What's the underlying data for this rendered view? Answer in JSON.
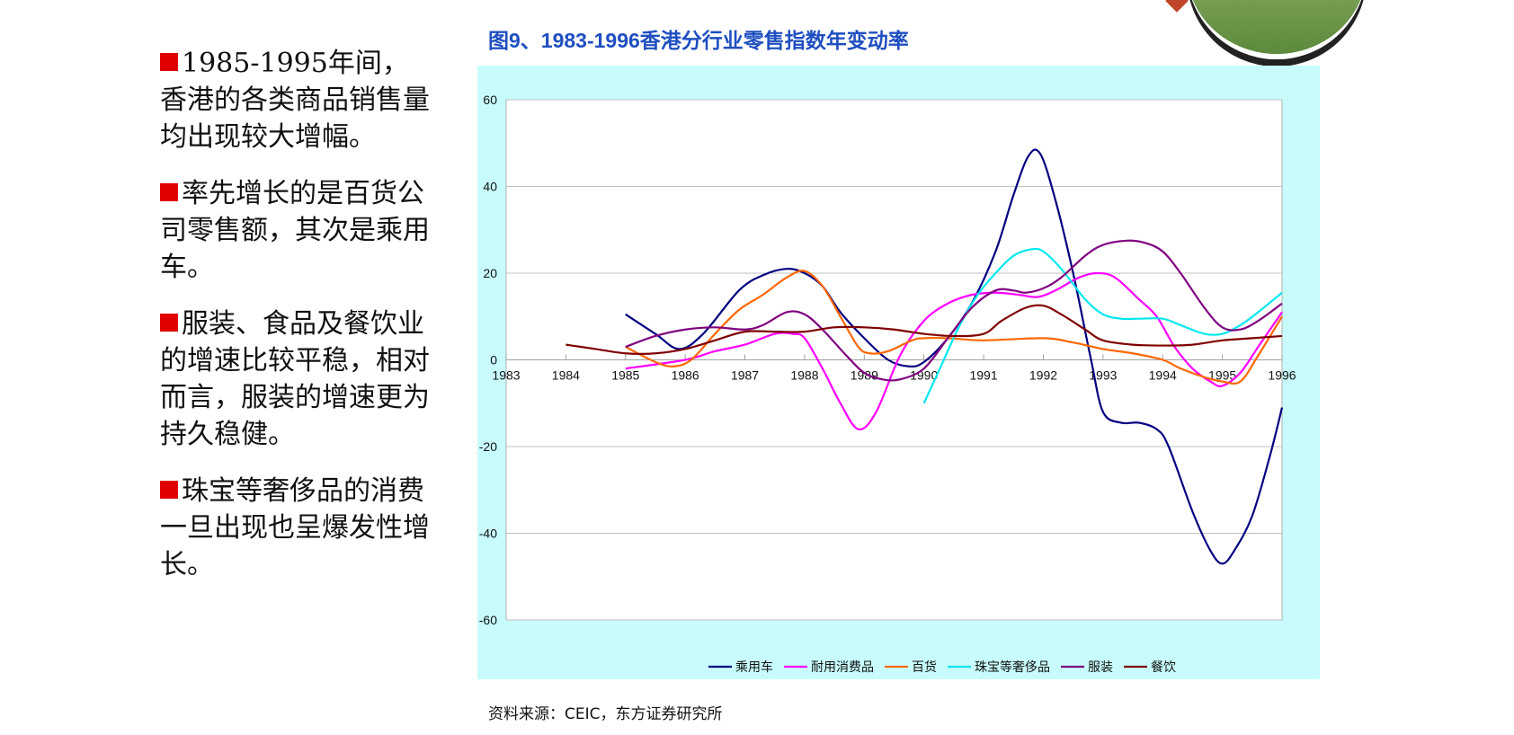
{
  "bullets": [
    "1985-1995年间，香港的各类商品销售量均出现较大增幅。",
    "率先增长的是百货公司零售额，其次是乘用车。",
    "服装、食品及餐饮业的增速比较平稳，相对而言，服装的增速更为持久稳健。",
    "珠宝等奢侈品的消费一旦出现也呈爆发性增长。"
  ],
  "source": "资料来源：CEIC，东方证券研究所",
  "chart_data": {
    "type": "line",
    "title": "图9、1983-1996香港分行业零售指数年变动率",
    "xlim": [
      1983,
      1996
    ],
    "ylim": [
      -60,
      60
    ],
    "xticks": [
      "1983",
      "1984",
      "1985",
      "1986",
      "1987",
      "1988",
      "1989",
      "1990",
      "1991",
      "1992",
      "1993",
      "1994",
      "1995",
      "1996"
    ],
    "yticks": [
      "60",
      "40",
      "20",
      "0",
      "-20",
      "-40",
      "-60"
    ],
    "grid": true,
    "legend": "bottom",
    "series": [
      {
        "name": "乘用车",
        "color": "#000080",
        "x": [
          1985,
          1985.5,
          1985.9,
          1986.3,
          1986.9,
          1987.3,
          1987.7,
          1988,
          1988.3,
          1988.6,
          1989,
          1989.4,
          1989.75,
          1990,
          1990.4,
          1990.8,
          1991.2,
          1991.5,
          1991.75,
          1991.95,
          1992.2,
          1992.5,
          1992.8,
          1993,
          1993.3,
          1993.6,
          1993.9,
          1994.1,
          1994.5,
          1994.8,
          1995,
          1995.2,
          1995.5,
          1995.8,
          1996
        ],
        "y": [
          10.5,
          6,
          2.5,
          6,
          16,
          19.5,
          21,
          20,
          17,
          11,
          5,
          0,
          -1.5,
          -0.5,
          5,
          13,
          25,
          38,
          47,
          47.5,
          37,
          20,
          0,
          -12,
          -14.5,
          -14.5,
          -16,
          -20,
          -35,
          -44,
          -47,
          -44,
          -36,
          -22,
          -11
        ]
      },
      {
        "name": "耐用消费品",
        "color": "#ff00ff",
        "x": [
          1985,
          1986,
          1986.5,
          1987,
          1987.5,
          1987.8,
          1988,
          1988.3,
          1988.6,
          1988.9,
          1989.2,
          1989.6,
          1990,
          1990.4,
          1990.8,
          1991.2,
          1991.6,
          1991.9,
          1992.2,
          1992.6,
          1992.9,
          1993.2,
          1993.6,
          1993.9,
          1994.2,
          1994.5,
          1994.8,
          1995,
          1995.3,
          1995.6,
          1996
        ],
        "y": [
          -2,
          0,
          2,
          3.5,
          6,
          6,
          5,
          -2,
          -10,
          -16,
          -12,
          1,
          9,
          13,
          15,
          15.5,
          15,
          14.5,
          16,
          19,
          20,
          19,
          14,
          10,
          3,
          -2,
          -5,
          -6,
          -3,
          3,
          11
        ]
      },
      {
        "name": "百货",
        "color": "#ff6600",
        "x": [
          1985,
          1985.5,
          1985.8,
          1986.1,
          1986.5,
          1986.9,
          1987.3,
          1987.7,
          1988,
          1988.3,
          1988.6,
          1988.9,
          1989.1,
          1989.4,
          1989.8,
          1990,
          1990.4,
          1991,
          1992,
          1992.5,
          1993,
          1993.5,
          1994,
          1994.3,
          1994.7,
          1995,
          1995.3,
          1995.6,
          1996
        ],
        "y": [
          3,
          -0.5,
          -1.5,
          0,
          6,
          11.5,
          15,
          19,
          20.5,
          17,
          10,
          3,
          1.5,
          2,
          4.5,
          5,
          5,
          4.5,
          5,
          4,
          2.5,
          1.5,
          0,
          -2,
          -4,
          -5,
          -5,
          1,
          10
        ]
      },
      {
        "name": "珠宝等奢侈品",
        "color": "#00e8f0",
        "x": [
          1990,
          1990.3,
          1990.6,
          1990.9,
          1991.2,
          1991.5,
          1991.8,
          1992,
          1992.3,
          1992.7,
          1993,
          1993.3,
          1993.6,
          1994,
          1994.3,
          1994.7,
          1995,
          1995.3,
          1995.6,
          1996
        ],
        "y": [
          -10,
          -1,
          8,
          15,
          20,
          24,
          25.5,
          25,
          21,
          14,
          10.5,
          9.5,
          9.5,
          9.5,
          8,
          6,
          6,
          8,
          11,
          15.5
        ]
      },
      {
        "name": "服装",
        "color": "#800080",
        "x": [
          1985,
          1985.5,
          1986,
          1986.5,
          1987,
          1987.3,
          1987.7,
          1988,
          1988.3,
          1988.7,
          1989,
          1989.3,
          1989.6,
          1990,
          1990.4,
          1990.8,
          1991.2,
          1991.5,
          1991.7,
          1992,
          1992.3,
          1992.7,
          1993,
          1993.4,
          1993.7,
          1994,
          1994.3,
          1994.7,
          1995,
          1995.3,
          1995.6,
          1996
        ],
        "y": [
          3,
          5.5,
          7,
          7.5,
          7,
          8,
          11,
          10.5,
          7,
          1,
          -3,
          -4.5,
          -4.5,
          -2,
          5,
          12,
          16,
          16,
          15.5,
          16.5,
          19,
          24,
          26.5,
          27.5,
          27,
          25,
          20,
          12,
          7.5,
          7,
          9,
          13
        ]
      },
      {
        "name": "餐饮",
        "color": "#800000",
        "x": [
          1984,
          1984.5,
          1985,
          1985.5,
          1986,
          1986.5,
          1987,
          1987.5,
          1988,
          1988.5,
          1989,
          1989.5,
          1990,
          1990.5,
          1991,
          1991.3,
          1991.7,
          1992,
          1992.3,
          1992.7,
          1993,
          1993.5,
          1994,
          1994.5,
          1995,
          1995.5,
          1996
        ],
        "y": [
          3.5,
          2.5,
          1.5,
          1.5,
          2.5,
          4.5,
          6.5,
          6.5,
          6.5,
          7.5,
          7.5,
          7,
          6,
          5.5,
          6,
          9,
          12,
          12.5,
          10.5,
          7,
          4.5,
          3.5,
          3.3,
          3.5,
          4.5,
          5,
          5.5
        ]
      }
    ]
  }
}
